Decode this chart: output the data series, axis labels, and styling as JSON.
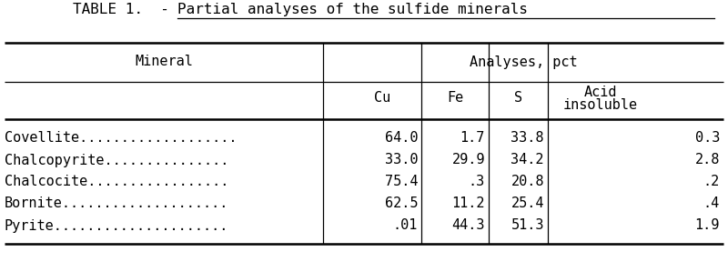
{
  "title_left": "TABLE 1.  - ",
  "title_right": "Partial analyses of the sulfide minerals",
  "col_header_left": "Mineral",
  "col_header_group": "Analyses, pct",
  "col_subheaders": [
    "Cu",
    "Fe",
    "S",
    "Acid\ninsoluble"
  ],
  "minerals": [
    "Covellite...................",
    "Chalcopyrite...............",
    "Chalcocite.................",
    "Bornite....................",
    "Pyrite....................."
  ],
  "data": [
    [
      "64.0",
      "1.7",
      "33.8",
      "0.3"
    ],
    [
      "33.0",
      "29.9",
      "34.2",
      "2.8"
    ],
    [
      "75.4",
      ".3",
      "20.8",
      ".2"
    ],
    [
      "62.5",
      "11.2",
      "25.4",
      ".4"
    ],
    [
      ".01",
      "44.3",
      "51.3",
      "1.9"
    ]
  ],
  "bg_color": "#ffffff",
  "text_color": "#000000",
  "font_family": "monospace",
  "title_fontsize": 11.5,
  "header_fontsize": 11,
  "cell_fontsize": 11
}
